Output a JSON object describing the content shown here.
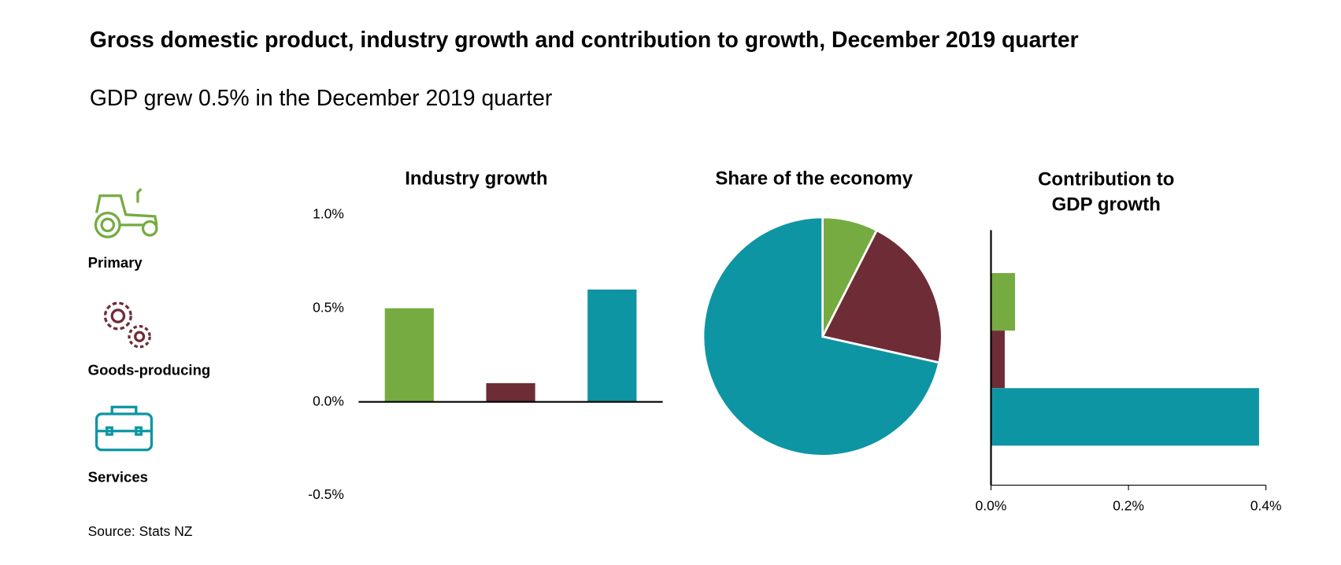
{
  "title": "Gross domestic product, industry growth and contribution to growth, December 2019 quarter",
  "subtitle": "GDP grew 0.5% in the December 2019 quarter",
  "source": "Source: Stats NZ",
  "legend": {
    "items": [
      "Primary",
      "Goods-producing",
      "Services"
    ]
  },
  "chart_data": [
    {
      "type": "bar",
      "title": "Industry growth",
      "categories": [
        null,
        null,
        null
      ],
      "values": [
        0.5,
        0.1,
        0.6
      ],
      "colors": [
        "#76ab41",
        "#6e2c37",
        "#0e95a3"
      ],
      "ylim": [
        -0.5,
        1.0
      ],
      "yticks": [
        {
          "value": -0.5,
          "label": "-0.5%"
        },
        {
          "value": 0,
          "label": "0.0%"
        },
        {
          "value": 0.5,
          "label": "0.5%"
        },
        {
          "value": 1,
          "label": "1.0%"
        }
      ]
    },
    {
      "type": "pie",
      "title": "Share of the economy",
      "categories": [
        null,
        null,
        null
      ],
      "values": [
        7.5,
        21,
        71.5
      ],
      "colors": [
        "#76ab41",
        "#6e2c37",
        "#0e95a3"
      ]
    },
    {
      "type": "hbar",
      "title": "Contribution to GDP growth",
      "categories": [
        null,
        null,
        null
      ],
      "values": [
        0.035,
        0.02,
        0.39
      ],
      "colors": [
        "#76ab41",
        "#6e2c37",
        "#0e95a3"
      ],
      "xlim": [
        0,
        0.4
      ],
      "xticks": [
        {
          "value": 0,
          "label": "0.0%"
        },
        {
          "value": 0.2,
          "label": "0.2%"
        },
        {
          "value": 0.4,
          "label": "0.4%"
        }
      ]
    }
  ]
}
